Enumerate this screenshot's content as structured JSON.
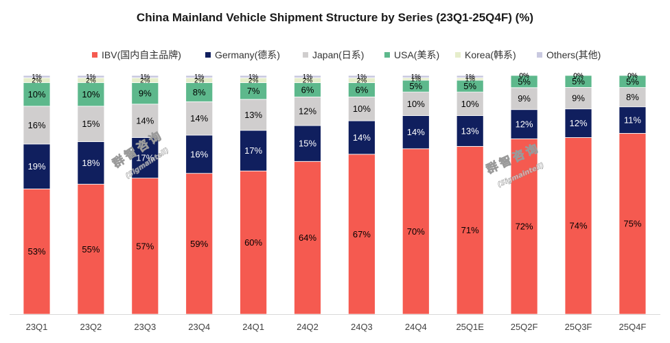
{
  "chart_data": {
    "type": "bar",
    "stacked": true,
    "normalized": true,
    "title": "China Mainland Vehicle Shipment Structure by Series (23Q1-25Q4F) (%)",
    "categories": [
      "23Q1",
      "23Q2",
      "23Q3",
      "23Q4",
      "24Q1",
      "24Q2",
      "24Q3",
      "24Q4",
      "25Q1E",
      "25Q2F",
      "25Q3F",
      "25Q4F"
    ],
    "value_suffix": "%",
    "ylim": [
      0,
      100
    ],
    "grid": false,
    "legend_position": "top",
    "series": [
      {
        "name": "IBV(国内自主品牌)",
        "color": "#F55A50",
        "label_color": "#000000",
        "values": [
          53,
          55,
          57,
          59,
          60,
          64,
          67,
          70,
          71,
          72,
          74,
          75
        ]
      },
      {
        "name": "Germany(德系)",
        "color": "#101F5E",
        "label_color": "#FFFFFF",
        "values": [
          19,
          18,
          17,
          16,
          17,
          15,
          14,
          14,
          13,
          12,
          12,
          11
        ]
      },
      {
        "name": "Japan(日系)",
        "color": "#D0CECE",
        "label_color": "#000000",
        "values": [
          16,
          15,
          14,
          14,
          13,
          12,
          10,
          10,
          10,
          9,
          9,
          8
        ]
      },
      {
        "name": "USA(美系)",
        "color": "#5DB88C",
        "label_color": "#000000",
        "values": [
          10,
          10,
          9,
          8,
          7,
          6,
          6,
          5,
          5,
          5,
          5,
          5
        ]
      },
      {
        "name": "Korea(韩系)",
        "color": "#E6EDCB",
        "label_color": "#000000",
        "values": [
          2,
          2,
          2,
          2,
          2,
          2,
          2,
          1,
          1,
          0,
          0,
          0
        ]
      },
      {
        "name": "Others(其他)",
        "color": "#C9C9E0",
        "label_color": "#000000",
        "values": [
          1,
          1,
          1,
          1,
          1,
          1,
          1,
          1,
          1,
          0,
          0,
          0
        ]
      }
    ]
  },
  "watermark": [
    {
      "name": "群智咨询",
      "sub": "(Sigmaintell)"
    },
    {
      "name": "群智咨询",
      "sub": "(Sigmaintell)"
    }
  ]
}
